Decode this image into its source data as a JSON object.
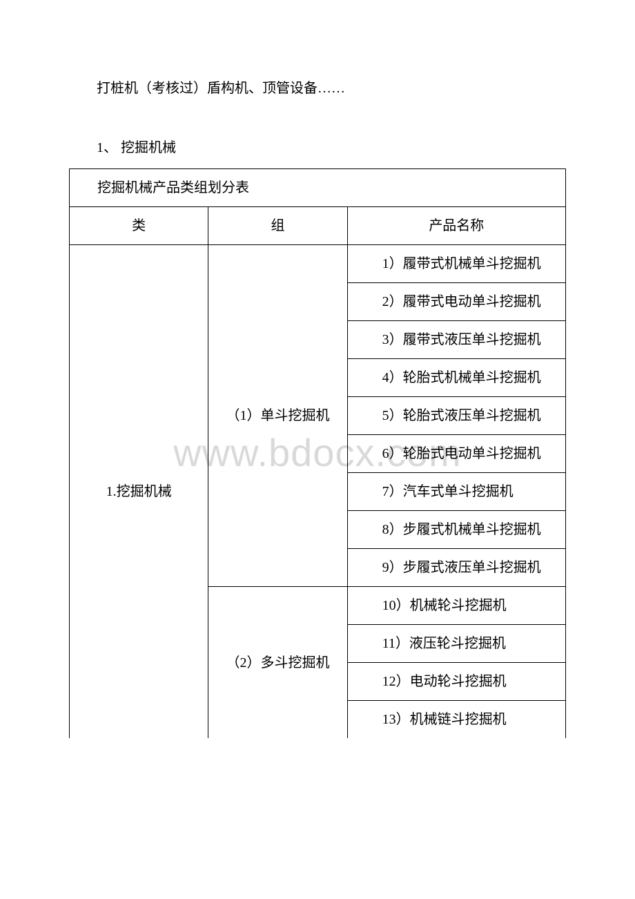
{
  "page": {
    "intro": "打桩机（考核过）盾构机、顶管设备……",
    "section_number": "1、 挖掘机械",
    "watermark": "www.bdocx.com"
  },
  "table": {
    "title": "挖掘机械产品类组划分表",
    "headers": {
      "category": "类",
      "group": "组",
      "product": "产品名称"
    },
    "category": "1.挖掘机械",
    "groups": {
      "g1": "（1）单斗挖掘机",
      "g2": "（2）多斗挖掘机"
    },
    "products": {
      "p1": "1）履带式机械单斗挖掘机",
      "p2": "2）履带式电动单斗挖掘机",
      "p3": "3）履带式液压单斗挖掘机",
      "p4": "4）轮胎式机械单斗挖掘机",
      "p5": "5）轮胎式液压单斗挖掘机",
      "p6": "6）轮胎式电动单斗挖掘机",
      "p7": "7）汽车式单斗挖掘机",
      "p8": "8）步履式机械单斗挖掘机",
      "p9": "9）步履式液压单斗挖掘机",
      "p10": "10）机械轮斗挖掘机",
      "p11": "11）液压轮斗挖掘机",
      "p12": "12）电动轮斗挖掘机",
      "p13": "13）机械链斗挖掘机"
    },
    "styling": {
      "border_color": "#000000",
      "background_color": "#ffffff",
      "text_color": "#000000",
      "font_size_pt": 15,
      "col_widths_pct": [
        28,
        28,
        44
      ]
    }
  }
}
